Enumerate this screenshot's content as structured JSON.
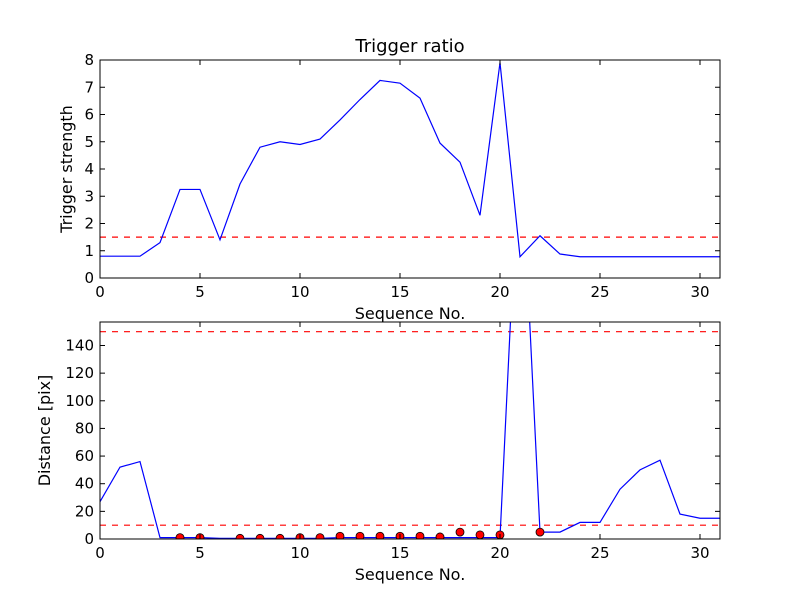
{
  "chart_data": [
    {
      "type": "line",
      "title": "Trigger ratio",
      "xlabel": "Sequence No.",
      "ylabel": "Trigger strength",
      "xlim": [
        0,
        31
      ],
      "ylim": [
        0,
        8
      ],
      "xticks": [
        0,
        5,
        10,
        15,
        20,
        25,
        30
      ],
      "yticks": [
        0,
        1,
        2,
        3,
        4,
        5,
        6,
        7,
        8
      ],
      "grid": false,
      "series": [
        {
          "color": "#0000ff",
          "x": [
            0,
            1,
            2,
            3,
            4,
            5,
            6,
            7,
            8,
            9,
            10,
            11,
            12,
            13,
            14,
            15,
            16,
            17,
            18,
            19,
            20,
            21,
            22,
            23,
            24,
            25,
            26,
            27,
            28,
            29,
            30,
            31
          ],
          "y": [
            0.8,
            0.8,
            0.8,
            1.3,
            3.25,
            3.25,
            1.4,
            3.45,
            4.8,
            5.0,
            4.9,
            5.1,
            5.8,
            6.55,
            7.25,
            7.15,
            6.6,
            4.95,
            4.25,
            2.3,
            7.9,
            0.78,
            1.55,
            0.88,
            0.78,
            0.78,
            0.78,
            0.78,
            0.78,
            0.78,
            0.78,
            0.78
          ]
        }
      ],
      "hlines": [
        {
          "y": 1.5,
          "color": "#ff0000",
          "style": "dashed"
        }
      ]
    },
    {
      "type": "line",
      "title": "",
      "xlabel": "Sequence No.",
      "ylabel": "Distance [pix]",
      "xlim": [
        0,
        31
      ],
      "ylim": [
        0,
        157
      ],
      "xticks": [
        0,
        5,
        10,
        15,
        20,
        25,
        30
      ],
      "yticks": [
        0,
        20,
        40,
        60,
        80,
        100,
        120,
        140
      ],
      "grid": false,
      "series": [
        {
          "color": "#0000ff",
          "x": [
            0,
            1,
            2,
            3,
            4,
            5,
            6,
            7,
            8,
            9,
            10,
            11,
            12,
            13,
            14,
            15,
            16,
            17,
            18,
            19,
            20,
            21,
            22,
            23,
            24,
            25,
            26,
            27,
            28,
            29,
            30,
            31
          ],
          "y": [
            27,
            52,
            56,
            1,
            1,
            1,
            0.5,
            0.5,
            0.5,
            0.5,
            0.5,
            0.5,
            1,
            1,
            1,
            1,
            1,
            1,
            1,
            1,
            1,
            300,
            5,
            5,
            12,
            12,
            36,
            50,
            57,
            18,
            15,
            15
          ]
        }
      ],
      "markers": {
        "color": "#ff0000",
        "x": [
          4,
          5,
          7,
          8,
          9,
          10,
          11,
          12,
          13,
          14,
          15,
          16,
          17,
          18,
          19,
          20,
          22
        ],
        "y": [
          1,
          1,
          0.5,
          0.5,
          0.5,
          1,
          1,
          2,
          2,
          2,
          2,
          2,
          1.5,
          5,
          3,
          3,
          5
        ]
      },
      "hlines": [
        {
          "y": 150,
          "color": "#ff0000",
          "style": "dashed"
        },
        {
          "y": 10,
          "color": "#ff0000",
          "style": "dashed"
        }
      ]
    }
  ]
}
